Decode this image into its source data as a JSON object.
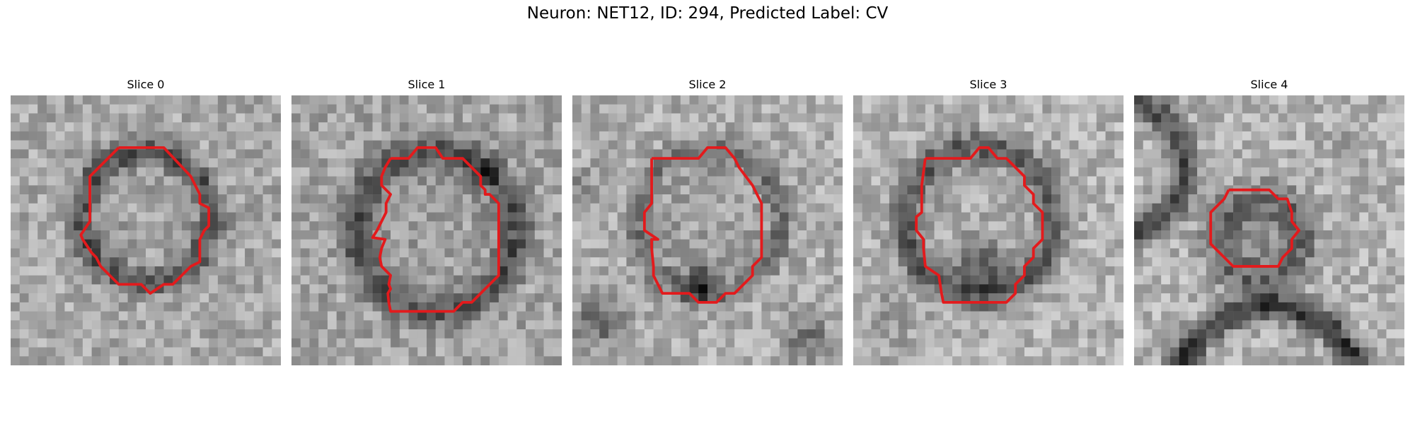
{
  "figure": {
    "title": "Neuron: NET12, ID: 294, Predicted Label: CV"
  },
  "slices": [
    {
      "label": "Slice 0"
    },
    {
      "label": "Slice 1"
    },
    {
      "label": "Slice 2"
    },
    {
      "label": "Slice 3"
    },
    {
      "label": "Slice 4"
    }
  ],
  "colors": {
    "contour": "#e31a1c",
    "background": "#ffffff"
  }
}
